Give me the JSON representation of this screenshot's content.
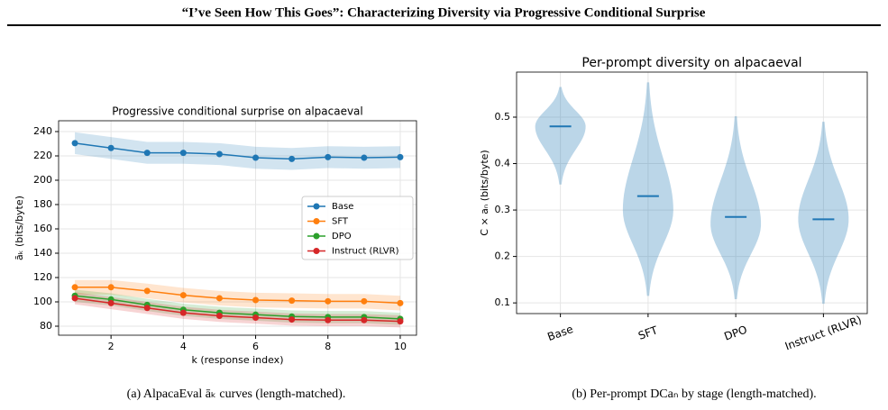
{
  "header": {
    "title": "“I’ve Seen How This Goes”: Characterizing Diversity via Progressive Conditional Surprise"
  },
  "chart_data": [
    {
      "type": "line",
      "title": "Progressive conditional surprise on alpacaeval",
      "x_label": "k (response index)",
      "y_label": "āₖ (bits/byte)",
      "caption": "(a) AlpacaEval āₖ curves (length-matched).",
      "x": [
        1,
        2,
        3,
        4,
        5,
        6,
        7,
        8,
        9,
        10
      ],
      "series": [
        {
          "name": "Base",
          "color": "#1f77b4",
          "values": [
            230.5,
            226.5,
            222.5,
            222.5,
            221.5,
            218.5,
            217.5,
            219,
            218.5,
            219
          ],
          "errors": [
            9,
            9,
            9,
            9,
            9,
            9,
            9,
            9,
            9,
            9
          ]
        },
        {
          "name": "SFT",
          "color": "#ff7f0e",
          "values": [
            112,
            112,
            109,
            105.5,
            103,
            101.5,
            101,
            100.5,
            100.5,
            99
          ],
          "errors": [
            6,
            6,
            6,
            6,
            6,
            6,
            6,
            6,
            6,
            6
          ]
        },
        {
          "name": "DPO",
          "color": "#2ca02c",
          "values": [
            105,
            102,
            97.5,
            93.5,
            91,
            89.5,
            88,
            87.5,
            87.5,
            86
          ],
          "errors": [
            5,
            5,
            5,
            5,
            5,
            5,
            5,
            5,
            5,
            5
          ]
        },
        {
          "name": "Instruct (RLVR)",
          "color": "#d62728",
          "values": [
            103,
            99,
            95,
            91,
            88.5,
            87,
            85.5,
            85,
            85,
            84
          ],
          "errors": [
            5,
            5,
            5,
            5,
            5,
            5,
            5,
            5,
            5,
            5
          ]
        }
      ],
      "xlim": [
        0.55,
        10.45
      ],
      "xticks": [
        2,
        4,
        6,
        8,
        10
      ],
      "ylim": [
        72.6,
        248.9
      ],
      "yticks": [
        80,
        100,
        120,
        140,
        160,
        180,
        200,
        220,
        240
      ],
      "grid": true,
      "legend": "right"
    },
    {
      "type": "violin",
      "title": "Per-prompt diversity on alpacaeval",
      "y_label": "C × aₙ (bits/byte)",
      "caption": "(b) Per-prompt DCaₙ by stage (length-matched).",
      "categories": [
        "Base",
        "SFT",
        "DPO",
        "Instruct (RLVR)"
      ],
      "color": "#1f77b4",
      "values": [
        0.48,
        0.33,
        0.285,
        0.28
      ],
      "min": [
        0.355,
        0.115,
        0.108,
        0.098
      ],
      "max": [
        0.565,
        0.575,
        0.502,
        0.49
      ],
      "mode": [
        0.48,
        0.3,
        0.27,
        0.28
      ],
      "ylim": [
        0.077,
        0.597
      ],
      "yticks": [
        0.1,
        0.2,
        0.3,
        0.4,
        0.5
      ],
      "grid": true
    }
  ]
}
